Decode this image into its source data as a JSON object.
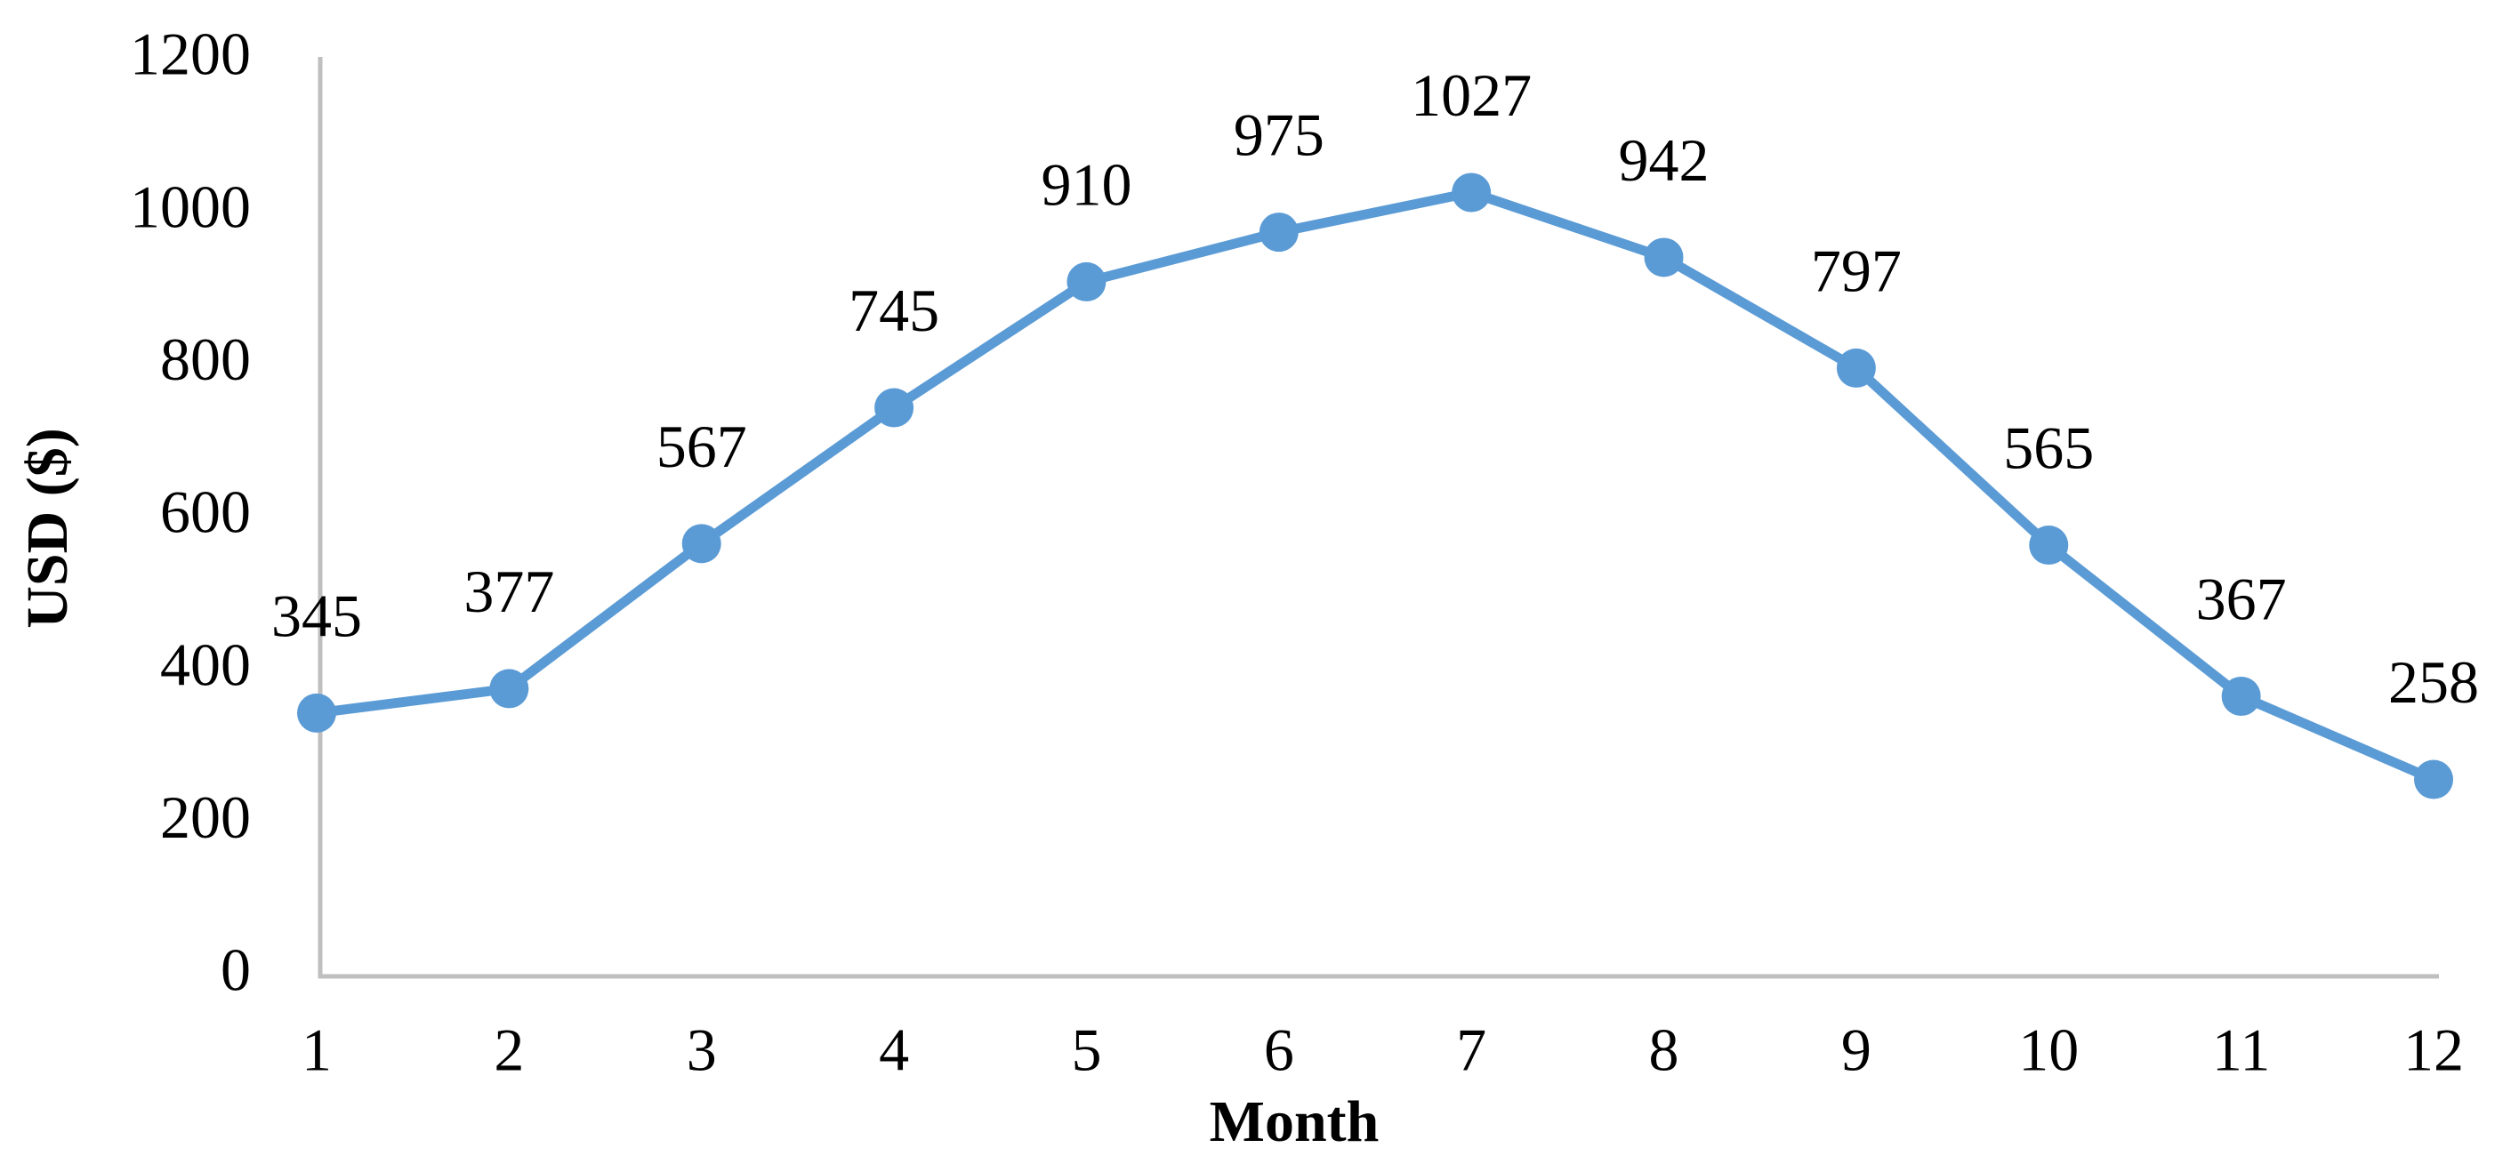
{
  "chart_data": {
    "type": "line",
    "x_label": "Month",
    "y_label": "USD ($)",
    "categories": [
      "1",
      "2",
      "3",
      "4",
      "5",
      "6",
      "7",
      "8",
      "9",
      "10",
      "11",
      "12"
    ],
    "values": [
      345,
      377,
      567,
      745,
      910,
      975,
      1027,
      942,
      797,
      565,
      367,
      258
    ],
    "color": "#5b9bd5",
    "ylim": [
      0,
      1200
    ],
    "yticks": [
      0,
      200,
      400,
      600,
      800,
      1000,
      1200
    ],
    "grid": false,
    "data_labels": true
  }
}
